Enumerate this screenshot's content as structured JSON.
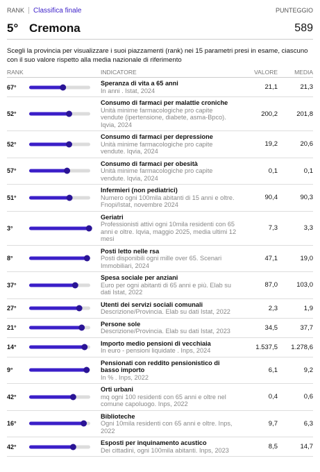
{
  "header": {
    "rank_label": "RANK",
    "section": "Classifica finale",
    "score_label": "PUNTEGGIO",
    "rank": "5°",
    "province": "Cremona",
    "score": "589"
  },
  "description": "Scegli la provincia per visualizzare i suoi piazzamenti (rank) nei 15 parametri presi in esame, ciascuno con il suo valore rispetto alla media nazionale di riferimento",
  "columns": [
    "RANK",
    "INDICATORE",
    "VALORE",
    "MEDIA"
  ],
  "rows": [
    {
      "rank": {
        "value": 67,
        "label": "67°"
      },
      "indicator": "Speranza di vita a 65 anni",
      "source": "In anni . Istat, 2024",
      "value": "21,1",
      "average": "21,3"
    },
    {
      "rank": {
        "value": 52,
        "label": "52°"
      },
      "indicator": "Consumo di farmaci per malattie croniche",
      "source": "Unità minime farmacologiche pro capite vendute (ipertensione, diabete, asma-Bpco). Iqvia, 2024",
      "value": "200,2",
      "average": "201,8"
    },
    {
      "rank": {
        "value": 52,
        "label": "52°"
      },
      "indicator": "Consumo di farmaci per depressione",
      "source": "Unità minime farmacologiche pro capite vendute. Iqvia, 2024",
      "value": "19,2",
      "average": "20,6"
    },
    {
      "rank": {
        "value": 57,
        "label": "57°"
      },
      "indicator": "Consumo di farmaci per obesità",
      "source": "Unità minime farmacologiche pro capite vendute. Iqvia, 2024",
      "value": "0,1",
      "average": "0,1"
    },
    {
      "rank": {
        "value": 51,
        "label": "51°"
      },
      "indicator": "Infermieri (non pediatrici)",
      "source": "Numero ogni 100mila abitanti di 15 anni e oltre. Fnopi/Istat, novembre 2024",
      "value": "90,4",
      "average": "90,3"
    },
    {
      "rank": {
        "value": 3,
        "label": "3°"
      },
      "indicator": "Geriatri",
      "source": "Professionisti attivi ogni 10mila residenti con 65 anni e oltre. Iqvia, maggio 2025, media ultimi 12 mesi",
      "value": "7,3",
      "average": "3,3"
    },
    {
      "rank": {
        "value": 8,
        "label": "8°"
      },
      "indicator": "Posti letto nelle rsa",
      "source": "Posti disponibili ogni mille over 65. Scenari Immobiliari, 2024",
      "value": "47,1",
      "average": "19,0"
    },
    {
      "rank": {
        "value": 37,
        "label": "37°"
      },
      "indicator": "Spesa sociale per anziani",
      "source": "Euro per ogni abitanti di 65 anni e più. Elab su dati Istat, 2022",
      "value": "87,0",
      "average": "103,0"
    },
    {
      "rank": {
        "value": 27,
        "label": "27°"
      },
      "indicator": "Utenti dei servizi sociali comunali",
      "source": "Descrizione/Provincia. Elab su dati Istat, 2022",
      "value": "2,3",
      "average": "1,9"
    },
    {
      "rank": {
        "value": 21,
        "label": "21°"
      },
      "indicator": "Persone sole",
      "source": "Descrizione/Provincia. Elab su dati Istat, 2023",
      "value": "34,5",
      "average": "37,7"
    },
    {
      "rank": {
        "value": 14,
        "label": "14°"
      },
      "indicator": "Importo medio pensioni di vecchiaia",
      "source": "In euro - pensioni liquidate . Inps, 2024",
      "value": "1.537,5",
      "average": "1.278,6"
    },
    {
      "rank": {
        "value": 9,
        "label": "9°"
      },
      "indicator": "Pensionati con reddito pensionistico di basso importo",
      "source": "In % . Inps, 2022",
      "value": "6,1",
      "average": "9,2"
    },
    {
      "rank": {
        "value": 42,
        "label": "42°"
      },
      "indicator": "Orti urbani",
      "source": "mq ogni 100 residenti con 65 anni e oltre nel comune capoluogo. Inps, 2022",
      "value": "0,4",
      "average": "0,6"
    },
    {
      "rank": {
        "value": 16,
        "label": "16°"
      },
      "indicator": "Biblioteche",
      "source": "Ogni 10mila residenti con 65 anni e oltre. Inps, 2022",
      "value": "9,7",
      "average": "6,3"
    },
    {
      "rank": {
        "value": 42,
        "label": "42°"
      },
      "indicator": "Esposti per inquinamento acustico",
      "source": "Dei cittadini, ogni 100mila abitanti. Inps, 2023",
      "value": "8,5",
      "average": "14,7"
    }
  ]
}
